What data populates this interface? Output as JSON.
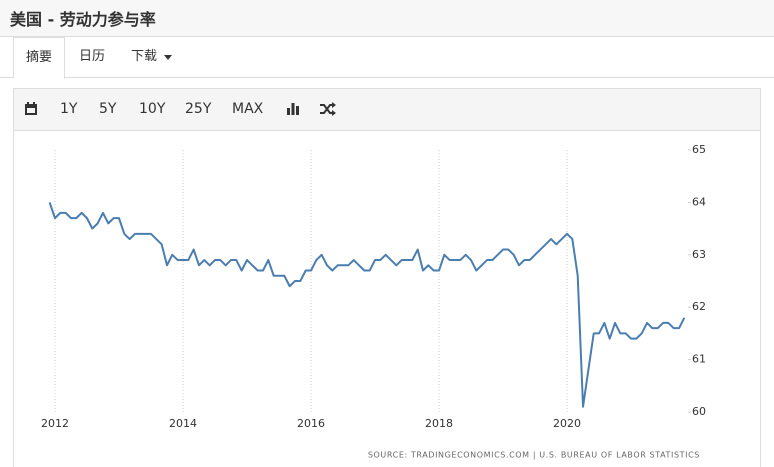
{
  "header": {
    "title": "美国 - 劳动力参与率"
  },
  "tabs": [
    "摘要",
    "日历",
    "下载"
  ],
  "toolbar": [
    "1Y",
    "5Y",
    "10Y",
    "25Y",
    "MAX"
  ],
  "chart_data": {
    "type": "line",
    "color": "#4a7eb0",
    "source": "SOURCE: TRADINGECONOMICS.COM | U.S. BUREAU OF LABOR STATISTICS",
    "x": [
      2011.917,
      2012,
      2012.083,
      2012.167,
      2012.25,
      2012.333,
      2012.417,
      2012.5,
      2012.583,
      2012.667,
      2012.75,
      2012.833,
      2012.917,
      2013,
      2013.083,
      2013.167,
      2013.25,
      2013.333,
      2013.417,
      2013.5,
      2013.583,
      2013.667,
      2013.75,
      2013.833,
      2013.917,
      2014,
      2014.083,
      2014.167,
      2014.25,
      2014.333,
      2014.417,
      2014.5,
      2014.583,
      2014.667,
      2014.75,
      2014.833,
      2014.917,
      2015,
      2015.083,
      2015.167,
      2015.25,
      2015.333,
      2015.417,
      2015.5,
      2015.583,
      2015.667,
      2015.75,
      2015.833,
      2015.917,
      2016,
      2016.083,
      2016.167,
      2016.25,
      2016.333,
      2016.417,
      2016.5,
      2016.583,
      2016.667,
      2016.75,
      2016.833,
      2016.917,
      2017,
      2017.083,
      2017.167,
      2017.25,
      2017.333,
      2017.417,
      2017.5,
      2017.583,
      2017.667,
      2017.75,
      2017.833,
      2017.917,
      2018,
      2018.083,
      2018.167,
      2018.25,
      2018.333,
      2018.417,
      2018.5,
      2018.583,
      2018.667,
      2018.75,
      2018.833,
      2018.917,
      2019,
      2019.083,
      2019.167,
      2019.25,
      2019.333,
      2019.417,
      2019.5,
      2019.583,
      2019.667,
      2019.75,
      2019.833,
      2019.917,
      2020,
      2020.083,
      2020.167,
      2020.25,
      2020.333,
      2020.417,
      2020.5,
      2020.583,
      2020.667,
      2020.75,
      2020.833,
      2020.917,
      2021,
      2021.083,
      2021.167,
      2021.25,
      2021.333,
      2021.417,
      2021.5,
      2021.583,
      2021.667,
      2021.75,
      2021.833
    ],
    "values": [
      64.0,
      63.7,
      63.8,
      63.8,
      63.7,
      63.7,
      63.8,
      63.7,
      63.5,
      63.6,
      63.8,
      63.6,
      63.7,
      63.7,
      63.4,
      63.3,
      63.4,
      63.4,
      63.4,
      63.4,
      63.3,
      63.2,
      62.8,
      63.0,
      62.9,
      62.9,
      62.9,
      63.1,
      62.8,
      62.9,
      62.8,
      62.9,
      62.9,
      62.8,
      62.9,
      62.9,
      62.7,
      62.9,
      62.8,
      62.7,
      62.7,
      62.9,
      62.6,
      62.6,
      62.6,
      62.4,
      62.5,
      62.5,
      62.7,
      62.7,
      62.9,
      63.0,
      62.8,
      62.7,
      62.8,
      62.8,
      62.8,
      62.9,
      62.8,
      62.7,
      62.7,
      62.9,
      62.9,
      63.0,
      62.9,
      62.8,
      62.9,
      62.9,
      62.9,
      63.1,
      62.7,
      62.8,
      62.7,
      62.7,
      63.0,
      62.9,
      62.9,
      62.9,
      63.0,
      62.9,
      62.7,
      62.8,
      62.9,
      62.9,
      63.0,
      63.1,
      63.1,
      63.0,
      62.8,
      62.9,
      62.9,
      63.0,
      63.1,
      63.2,
      63.3,
      63.2,
      63.3,
      63.4,
      63.3,
      62.6,
      60.1,
      60.8,
      61.5,
      61.5,
      61.7,
      61.4,
      61.7,
      61.5,
      61.5,
      61.4,
      61.4,
      61.5,
      61.7,
      61.6,
      61.6,
      61.7,
      61.7,
      61.6,
      61.6,
      61.8
    ],
    "xlim": [
      2011.36,
      2021.89
    ],
    "xticks": [
      2012,
      2014,
      2016,
      2018,
      2020
    ],
    "ylim": [
      60,
      65
    ],
    "yticks": [
      60,
      61,
      62,
      63,
      64,
      65
    ],
    "xgrid": true
  }
}
